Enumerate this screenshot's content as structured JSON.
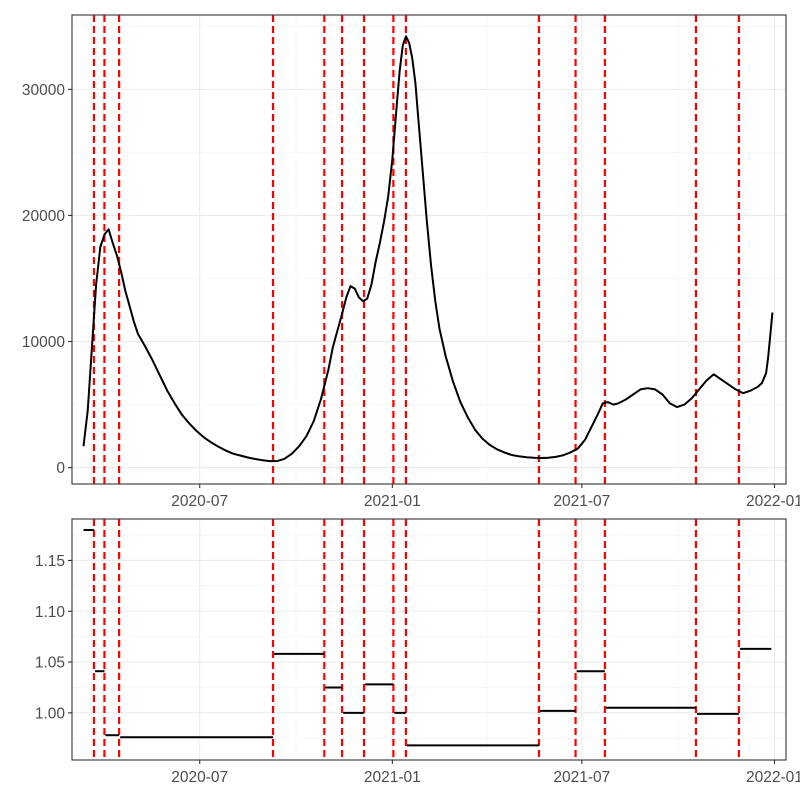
{
  "chart_data": [
    {
      "type": "line",
      "title": "",
      "xlabel": "",
      "ylabel": "",
      "xlim": [
        "2020-03-01",
        "2022-01-12"
      ],
      "ylim": [
        -1300,
        35900
      ],
      "x_ticks": [
        {
          "date": "2020-07-01",
          "label": "2020-07"
        },
        {
          "date": "2021-01-01",
          "label": "2021-01"
        },
        {
          "date": "2021-07-01",
          "label": "2021-07"
        },
        {
          "date": "2022-01-01",
          "label": "2022-01"
        }
      ],
      "y_ticks": [
        {
          "value": 0,
          "label": "0"
        },
        {
          "value": 10000,
          "label": "10000"
        },
        {
          "value": 20000,
          "label": "20000"
        },
        {
          "value": 30000,
          "label": "30000"
        }
      ],
      "grid": true,
      "series": [
        {
          "color": "#000000",
          "points": [
            [
              "2020-03-12",
              1700
            ],
            [
              "2020-03-16",
              4500
            ],
            [
              "2020-03-20",
              9500
            ],
            [
              "2020-03-24",
              14500
            ],
            [
              "2020-03-28",
              17500
            ],
            [
              "2020-04-01",
              18500
            ],
            [
              "2020-04-05",
              18900
            ],
            [
              "2020-04-09",
              17800
            ],
            [
              "2020-04-13",
              16800
            ],
            [
              "2020-04-17",
              15500
            ],
            [
              "2020-04-21",
              14000
            ],
            [
              "2020-04-25",
              12800
            ],
            [
              "2020-04-29",
              11600
            ],
            [
              "2020-05-03",
              10600
            ],
            [
              "2020-05-10",
              9600
            ],
            [
              "2020-05-17",
              8500
            ],
            [
              "2020-05-24",
              7300
            ],
            [
              "2020-05-31",
              6100
            ],
            [
              "2020-06-07",
              5100
            ],
            [
              "2020-06-14",
              4200
            ],
            [
              "2020-06-21",
              3500
            ],
            [
              "2020-06-28",
              2900
            ],
            [
              "2020-07-05",
              2400
            ],
            [
              "2020-07-12",
              2000
            ],
            [
              "2020-07-19",
              1650
            ],
            [
              "2020-07-26",
              1350
            ],
            [
              "2020-08-02",
              1100
            ],
            [
              "2020-08-09",
              950
            ],
            [
              "2020-08-16",
              800
            ],
            [
              "2020-08-23",
              680
            ],
            [
              "2020-08-30",
              590
            ],
            [
              "2020-09-06",
              520
            ],
            [
              "2020-09-13",
              520
            ],
            [
              "2020-09-20",
              700
            ],
            [
              "2020-09-27",
              1100
            ],
            [
              "2020-10-04",
              1700
            ],
            [
              "2020-10-11",
              2500
            ],
            [
              "2020-10-18",
              3700
            ],
            [
              "2020-10-25",
              5500
            ],
            [
              "2020-11-01",
              7800
            ],
            [
              "2020-11-05",
              9500
            ],
            [
              "2020-11-10",
              11000
            ],
            [
              "2020-11-14",
              12200
            ],
            [
              "2020-11-18",
              13500
            ],
            [
              "2020-11-22",
              14400
            ],
            [
              "2020-11-26",
              14200
            ],
            [
              "2020-11-30",
              13500
            ],
            [
              "2020-12-04",
              13200
            ],
            [
              "2020-12-08",
              13400
            ],
            [
              "2020-12-12",
              14500
            ],
            [
              "2020-12-16",
              16300
            ],
            [
              "2020-12-20",
              17800
            ],
            [
              "2020-12-24",
              19500
            ],
            [
              "2020-12-28",
              21500
            ],
            [
              "2021-01-01",
              24500
            ],
            [
              "2021-01-05",
              28500
            ],
            [
              "2021-01-08",
              31500
            ],
            [
              "2021-01-11",
              33500
            ],
            [
              "2021-01-14",
              34200
            ],
            [
              "2021-01-17",
              33700
            ],
            [
              "2021-01-20",
              32500
            ],
            [
              "2021-01-23",
              30500
            ],
            [
              "2021-01-26",
              27500
            ],
            [
              "2021-01-30",
              23500
            ],
            [
              "2021-02-03",
              19500
            ],
            [
              "2021-02-07",
              16000
            ],
            [
              "2021-02-11",
              13200
            ],
            [
              "2021-02-15",
              11000
            ],
            [
              "2021-02-21",
              8800
            ],
            [
              "2021-02-28",
              6800
            ],
            [
              "2021-03-07",
              5200
            ],
            [
              "2021-03-14",
              4000
            ],
            [
              "2021-03-21",
              3000
            ],
            [
              "2021-03-28",
              2300
            ],
            [
              "2021-04-04",
              1800
            ],
            [
              "2021-04-11",
              1450
            ],
            [
              "2021-04-18",
              1200
            ],
            [
              "2021-04-25",
              1000
            ],
            [
              "2021-05-02",
              900
            ],
            [
              "2021-05-09",
              820
            ],
            [
              "2021-05-16",
              780
            ],
            [
              "2021-05-23",
              760
            ],
            [
              "2021-05-30",
              780
            ],
            [
              "2021-06-06",
              850
            ],
            [
              "2021-06-13",
              980
            ],
            [
              "2021-06-20",
              1200
            ],
            [
              "2021-06-27",
              1500
            ],
            [
              "2021-07-04",
              2200
            ],
            [
              "2021-07-10",
              3200
            ],
            [
              "2021-07-16",
              4200
            ],
            [
              "2021-07-21",
              5100
            ],
            [
              "2021-07-26",
              5200
            ],
            [
              "2021-07-31",
              5000
            ],
            [
              "2021-08-05",
              5100
            ],
            [
              "2021-08-12",
              5400
            ],
            [
              "2021-08-19",
              5800
            ],
            [
              "2021-08-26",
              6200
            ],
            [
              "2021-09-02",
              6300
            ],
            [
              "2021-09-09",
              6200
            ],
            [
              "2021-09-16",
              5800
            ],
            [
              "2021-09-23",
              5100
            ],
            [
              "2021-09-30",
              4800
            ],
            [
              "2021-10-07",
              5000
            ],
            [
              "2021-10-14",
              5500
            ],
            [
              "2021-10-21",
              6200
            ],
            [
              "2021-10-28",
              6900
            ],
            [
              "2021-11-04",
              7400
            ],
            [
              "2021-11-11",
              7000
            ],
            [
              "2021-11-18",
              6600
            ],
            [
              "2021-11-25",
              6200
            ],
            [
              "2021-12-02",
              5900
            ],
            [
              "2021-12-09",
              6100
            ],
            [
              "2021-12-16",
              6400
            ],
            [
              "2021-12-20",
              6700
            ],
            [
              "2021-12-24",
              7500
            ],
            [
              "2021-12-26",
              8800
            ],
            [
              "2021-12-28",
              10500
            ],
            [
              "2021-12-30",
              12300
            ]
          ]
        }
      ]
    },
    {
      "type": "line",
      "title": "",
      "xlabel": "",
      "ylabel": "",
      "xlim": [
        "2020-03-01",
        "2022-01-12"
      ],
      "ylim": [
        0.9536,
        1.1908
      ],
      "x_ticks": [
        {
          "date": "2020-07-01",
          "label": "2020-07"
        },
        {
          "date": "2021-01-01",
          "label": "2021-01"
        },
        {
          "date": "2021-07-01",
          "label": "2021-07"
        },
        {
          "date": "2022-01-01",
          "label": "2022-01"
        }
      ],
      "y_ticks": [
        {
          "value": 1.0,
          "label": "1.00"
        },
        {
          "value": 1.05,
          "label": "1.05"
        },
        {
          "value": 1.1,
          "label": "1.10"
        },
        {
          "value": 1.15,
          "label": "1.15"
        }
      ],
      "grid": true,
      "segments": [
        {
          "start": "2020-03-12",
          "end": "2020-03-22",
          "value": 1.18
        },
        {
          "start": "2020-03-23",
          "end": "2020-04-01",
          "value": 1.041
        },
        {
          "start": "2020-04-02",
          "end": "2020-04-15",
          "value": 0.978
        },
        {
          "start": "2020-04-16",
          "end": "2020-09-09",
          "value": 0.976
        },
        {
          "start": "2020-09-10",
          "end": "2020-10-28",
          "value": 1.058
        },
        {
          "start": "2020-10-29",
          "end": "2020-11-14",
          "value": 1.025
        },
        {
          "start": "2020-11-15",
          "end": "2020-12-05",
          "value": 1.0
        },
        {
          "start": "2020-12-06",
          "end": "2021-01-02",
          "value": 1.028
        },
        {
          "start": "2021-01-03",
          "end": "2021-01-14",
          "value": 1.0
        },
        {
          "start": "2021-01-15",
          "end": "2021-05-21",
          "value": 0.968
        },
        {
          "start": "2021-05-22",
          "end": "2021-06-25",
          "value": 1.002
        },
        {
          "start": "2021-06-26",
          "end": "2021-07-23",
          "value": 1.041
        },
        {
          "start": "2021-07-24",
          "end": "2021-10-18",
          "value": 1.005
        },
        {
          "start": "2021-10-19",
          "end": "2021-11-28",
          "value": 0.999
        },
        {
          "start": "2021-11-29",
          "end": "2021-12-29",
          "value": 1.063
        }
      ]
    }
  ],
  "breakpoints": {
    "color": "#ff0000",
    "style": "dashed",
    "dates": [
      "2020-03-22",
      "2020-04-01",
      "2020-04-15",
      "2020-09-09",
      "2020-10-28",
      "2020-11-14",
      "2020-12-05",
      "2021-01-02",
      "2021-01-14",
      "2021-05-21",
      "2021-06-25",
      "2021-07-23",
      "2021-10-18",
      "2021-11-28"
    ]
  }
}
